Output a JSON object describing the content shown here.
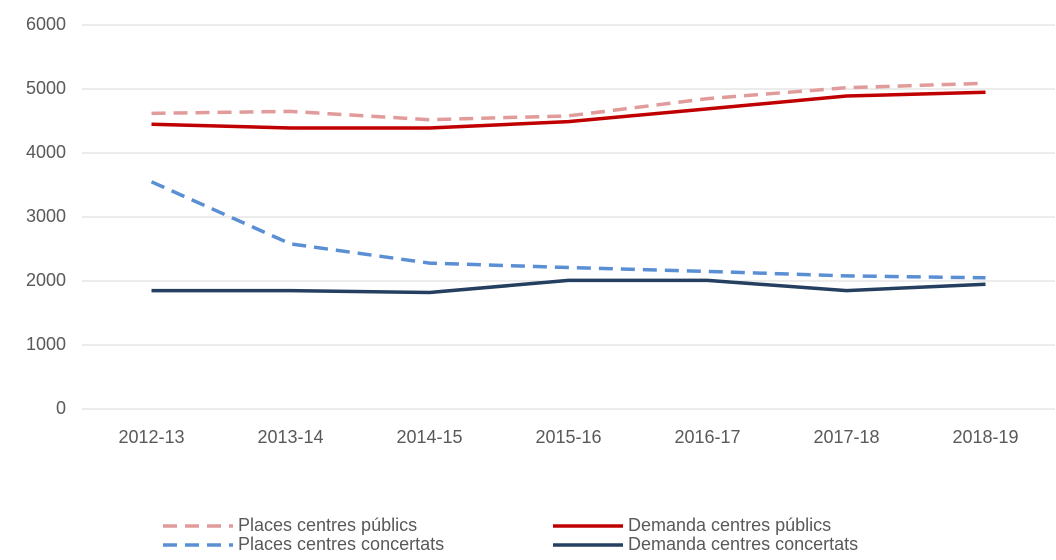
{
  "chart_data": {
    "type": "line",
    "categories": [
      "2012-13",
      "2013-14",
      "2014-15",
      "2015-16",
      "2016-17",
      "2017-18",
      "2018-19"
    ],
    "series": [
      {
        "name": "Places centres públics",
        "color": "#e09b9a",
        "dashed": true,
        "values": [
          4620,
          4650,
          4520,
          4580,
          4850,
          5020,
          5090
        ]
      },
      {
        "name": "Demanda centres públics",
        "color": "#c00000",
        "dashed": false,
        "values": [
          4450,
          4390,
          4390,
          4490,
          4690,
          4890,
          4950
        ]
      },
      {
        "name": "Places centres concertats",
        "color": "#5b8fd4",
        "dashed": true,
        "values": [
          3550,
          2580,
          2280,
          2210,
          2150,
          2080,
          2050
        ]
      },
      {
        "name": "Demanda centres concertats",
        "color": "#243f60",
        "dashed": false,
        "values": [
          1850,
          1850,
          1820,
          2010,
          2010,
          1850,
          1950
        ]
      }
    ],
    "ylim": [
      0,
      6000
    ],
    "yticks": [
      0,
      1000,
      2000,
      3000,
      4000,
      5000,
      6000
    ],
    "grid": true,
    "legend": "bottom"
  }
}
